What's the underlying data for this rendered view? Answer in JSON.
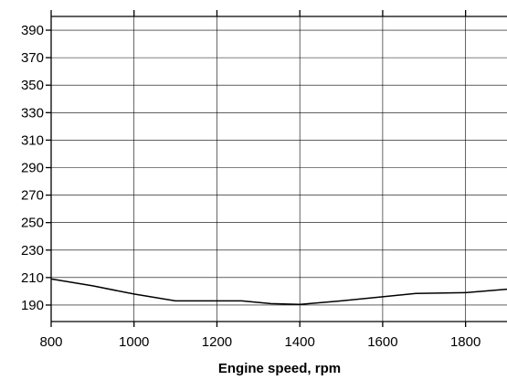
{
  "chart_data": {
    "type": "line",
    "xlabel": "Engine speed, rpm",
    "ylabel": "",
    "xlim": [
      800,
      1900
    ],
    "ylim": [
      178,
      400
    ],
    "x_ticks": [
      800,
      1000,
      1200,
      1400,
      1600,
      1800
    ],
    "y_ticks": [
      190,
      210,
      230,
      250,
      270,
      290,
      310,
      330,
      350,
      370,
      390
    ],
    "grid": true,
    "series": [
      {
        "x": [
          800,
          900,
          1000,
          1100,
          1260,
          1330,
          1400,
          1500,
          1600,
          1680,
          1800,
          1900
        ],
        "values": [
          209,
          204,
          198,
          193,
          193,
          191,
          190.5,
          193,
          196,
          198.5,
          199,
          201.5
        ]
      }
    ]
  }
}
